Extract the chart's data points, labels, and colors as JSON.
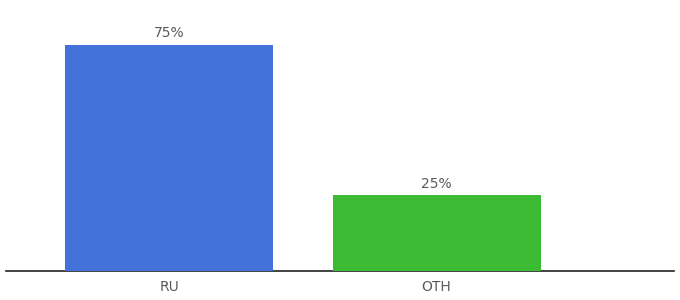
{
  "categories": [
    "RU",
    "OTH"
  ],
  "values": [
    75,
    25
  ],
  "bar_colors": [
    "#4472db",
    "#3dbb35"
  ],
  "label_texts": [
    "75%",
    "25%"
  ],
  "ylim": [
    0,
    88
  ],
  "background_color": "#ffffff",
  "tick_label_color": "#5a5a5a",
  "bar_label_color": "#5a5a5a",
  "tick_fontsize": 10,
  "label_fontsize": 10,
  "bar_width": 0.28,
  "x_positions": [
    0.22,
    0.58
  ],
  "xlim": [
    0,
    0.9
  ]
}
